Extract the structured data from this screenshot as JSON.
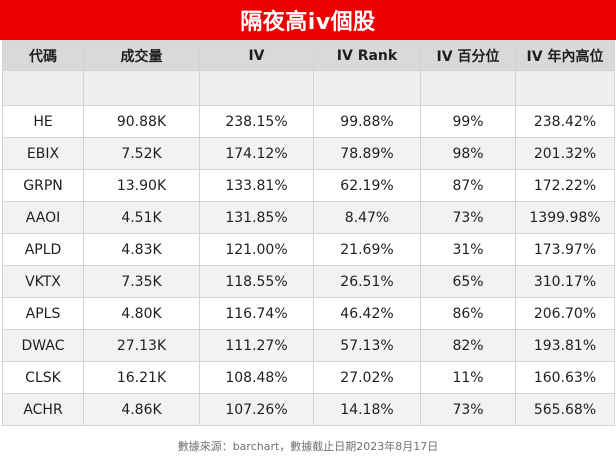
{
  "title": "隔夜高iv個股",
  "headers": [
    "代碼",
    "成交量",
    "IV",
    "IV Rank",
    "IV 百分位",
    "IV 年內高位"
  ],
  "rows": [
    {
      "code": "HE",
      "volume": "90.88K",
      "iv": "238.15%",
      "iv_rank": "99.88%",
      "iv_percentile": "99%",
      "iv_year_high": "238.42%"
    },
    {
      "code": "EBIX",
      "volume": "7.52K",
      "iv": "174.12%",
      "iv_rank": "78.89%",
      "iv_percentile": "98%",
      "iv_year_high": "201.32%"
    },
    {
      "code": "GRPN",
      "volume": "13.90K",
      "iv": "133.81%",
      "iv_rank": "62.19%",
      "iv_percentile": "87%",
      "iv_year_high": "172.22%"
    },
    {
      "code": "AAOI",
      "volume": "4.51K",
      "iv": "131.85%",
      "iv_rank": "8.47%",
      "iv_percentile": "73%",
      "iv_year_high": "1399.98%"
    },
    {
      "code": "APLD",
      "volume": "4.83K",
      "iv": "121.00%",
      "iv_rank": "21.69%",
      "iv_percentile": "31%",
      "iv_year_high": "173.97%"
    },
    {
      "code": "VKTX",
      "volume": "7.35K",
      "iv": "118.55%",
      "iv_rank": "26.51%",
      "iv_percentile": "65%",
      "iv_year_high": "310.17%"
    },
    {
      "code": "APLS",
      "volume": "4.80K",
      "iv": "116.74%",
      "iv_rank": "46.42%",
      "iv_percentile": "86%",
      "iv_year_high": "206.70%"
    },
    {
      "code": "DWAC",
      "volume": "27.13K",
      "iv": "111.27%",
      "iv_rank": "57.13%",
      "iv_percentile": "82%",
      "iv_year_high": "193.81%"
    },
    {
      "code": "CLSK",
      "volume": "16.21K",
      "iv": "108.48%",
      "iv_rank": "27.02%",
      "iv_percentile": "11%",
      "iv_year_high": "160.63%"
    },
    {
      "code": "ACHR",
      "volume": "4.86K",
      "iv": "107.26%",
      "iv_rank": "14.18%",
      "iv_percentile": "73%",
      "iv_year_high": "565.68%"
    }
  ],
  "footer": "數據來源：barchart，數據截止日期2023年8月17日",
  "colors": {
    "title_background": "#ee0000",
    "title_text": "#ffffff",
    "header_background": "#d9d9d9",
    "row_alt_background": "#f2f2f2"
  }
}
